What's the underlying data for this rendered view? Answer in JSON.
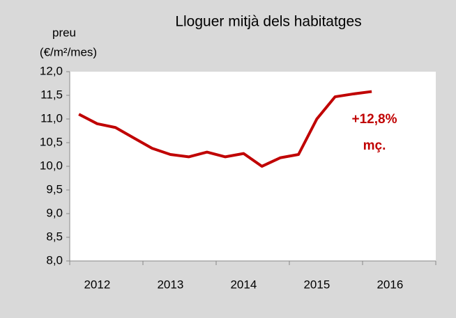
{
  "chart_data": {
    "type": "line",
    "title": "Lloguer mitjà dels habitatges",
    "y_label": [
      "preu",
      "(€/m²/mes)"
    ],
    "categories": [
      null,
      "2012",
      null,
      null,
      null,
      "2013",
      null,
      null,
      null,
      "2014",
      null,
      null,
      null,
      "2015",
      null,
      null,
      null,
      "2016",
      null,
      null
    ],
    "series": [
      {
        "name": "Lloguer mitjà",
        "color": "#c00000",
        "values": [
          11.1,
          10.9,
          10.82,
          10.6,
          10.38,
          10.25,
          10.2,
          10.3,
          10.2,
          10.27,
          10.0,
          10.18,
          10.25,
          11.0,
          11.47,
          11.53,
          11.58,
          null,
          null,
          null
        ]
      }
    ],
    "ylim": [
      8,
      12
    ],
    "yticks": [
      {
        "value": 8,
        "label": "8,0"
      },
      {
        "value": 8.5,
        "label": "8,5"
      },
      {
        "value": 9,
        "label": "9,0"
      },
      {
        "value": 9.5,
        "label": "9,5"
      },
      {
        "value": 10,
        "label": "10,0"
      },
      {
        "value": 10.5,
        "label": "10,5"
      },
      {
        "value": 11,
        "label": "11,0"
      },
      {
        "value": 11.5,
        "label": "11,5"
      },
      {
        "value": 12,
        "label": "12,0"
      }
    ],
    "annotation": [
      "+12,8%",
      "mç."
    ],
    "grid": false
  }
}
